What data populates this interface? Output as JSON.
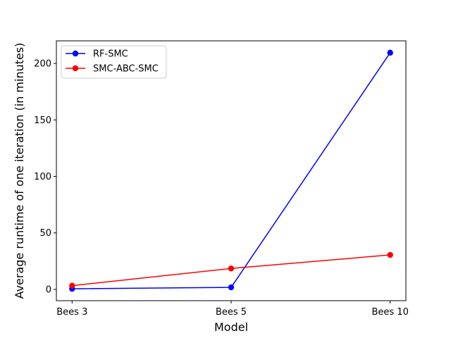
{
  "chart_data": {
    "type": "line",
    "xlabel": "Model",
    "ylabel": "Average runtime of one iteration (in minutes)",
    "categories": [
      "Bees 3",
      "Bees 5",
      "Bees 10"
    ],
    "ylim": [
      -10,
      220
    ],
    "yticks": [
      0,
      50,
      100,
      150,
      200
    ],
    "grid": false,
    "legend_position": "top-left",
    "series": [
      {
        "name": "RF-SMC",
        "color": "#0000ff",
        "values": [
          0.5,
          1.8,
          209.5
        ]
      },
      {
        "name": "SMC-ABC-SMC",
        "color": "#ff0000",
        "values": [
          3.3,
          18.5,
          30.5
        ]
      }
    ]
  }
}
